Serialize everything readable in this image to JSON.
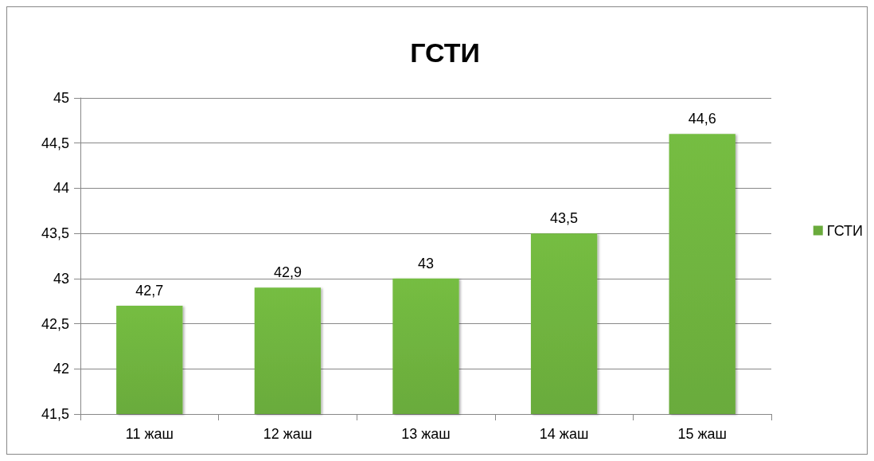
{
  "chart_data": {
    "type": "bar",
    "title": "ГСТИ",
    "categories": [
      "11 жаш",
      "12 жаш",
      "13 жаш",
      "14 жаш",
      "15 жаш"
    ],
    "series": [
      {
        "name": "ГСТИ",
        "color": "#6aab3c",
        "values": [
          42.7,
          42.9,
          43,
          43.5,
          44.6
        ],
        "value_labels": [
          "42,7",
          "42,9",
          "43",
          "43,5",
          "44,6"
        ]
      }
    ],
    "ylim": [
      41.5,
      45
    ],
    "yticks": [
      {
        "value": 41.5,
        "label": "41,5"
      },
      42,
      {
        "value": 42.5,
        "label": "42,5"
      },
      43,
      {
        "value": 43.5,
        "label": "43,5"
      },
      44,
      {
        "value": 44.5,
        "label": "44,5"
      },
      45
    ],
    "grid": "y",
    "legend": "right"
  }
}
